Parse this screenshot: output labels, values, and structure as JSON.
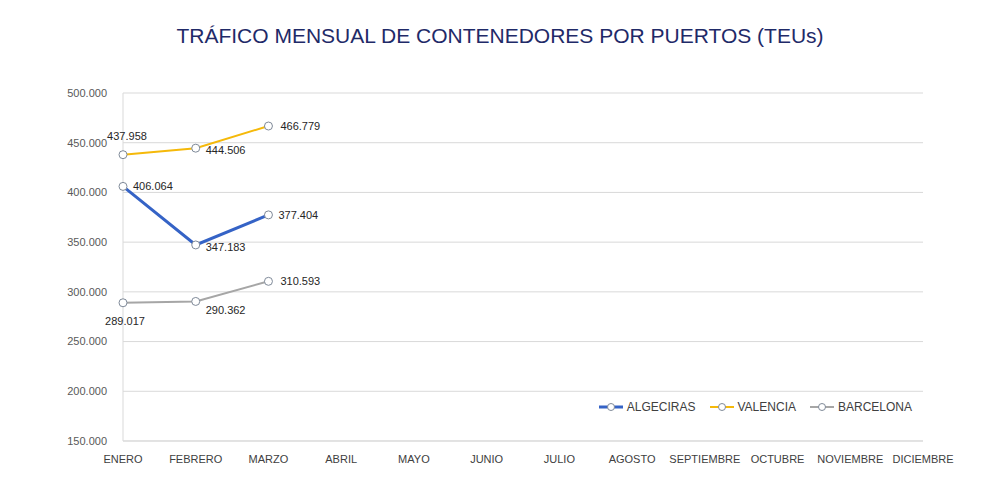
{
  "chart_data": {
    "type": "line",
    "title": "TRÁFICO MENSUAL DE CONTENEDORES POR PUERTOS (TEUs)",
    "categories": [
      "ENERO",
      "FEBRERO",
      "MARZO",
      "ABRIL",
      "MAYO",
      "JUNIO",
      "JULIO",
      "AGOSTO",
      "SEPTIEMBRE",
      "OCTUBRE",
      "NOVIEMBRE",
      "DICIEMBRE"
    ],
    "series": [
      {
        "name": "ALGECIRAS",
        "color": "#3563c6",
        "marker": "circle",
        "values": [
          406064,
          347183,
          377404,
          null,
          null,
          null,
          null,
          null,
          null,
          null,
          null,
          null
        ],
        "value_labels": [
          "406.064",
          "347.183",
          "377.404",
          null,
          null,
          null,
          null,
          null,
          null,
          null,
          null,
          null
        ]
      },
      {
        "name": "VALENCIA",
        "color": "#f5b90a",
        "marker": "circle",
        "values": [
          437958,
          444506,
          466779,
          null,
          null,
          null,
          null,
          null,
          null,
          null,
          null,
          null
        ],
        "value_labels": [
          "437.958",
          "444.506",
          "466.779",
          null,
          null,
          null,
          null,
          null,
          null,
          null,
          null,
          null
        ]
      },
      {
        "name": "BARCELONA",
        "color": "#a6a6a6",
        "marker": "circle",
        "values": [
          289017,
          290362,
          310593,
          null,
          null,
          null,
          null,
          null,
          null,
          null,
          null,
          null
        ],
        "value_labels": [
          "289.017",
          "290.362",
          "310.593",
          null,
          null,
          null,
          null,
          null,
          null,
          null,
          null,
          null
        ]
      }
    ],
    "ylim": [
      150000,
      500000
    ],
    "yticks": [
      {
        "value": 150000,
        "label": "150.000"
      },
      {
        "value": 200000,
        "label": "200.000"
      },
      {
        "value": 250000,
        "label": "250.000"
      },
      {
        "value": 300000,
        "label": "300.000"
      },
      {
        "value": 350000,
        "label": "350.000"
      },
      {
        "value": 400000,
        "label": "400.000"
      },
      {
        "value": 450000,
        "label": "450.000"
      },
      {
        "value": 500000,
        "label": "500.000"
      }
    ],
    "grid": true,
    "legend": "lower right",
    "data_labels": true
  }
}
